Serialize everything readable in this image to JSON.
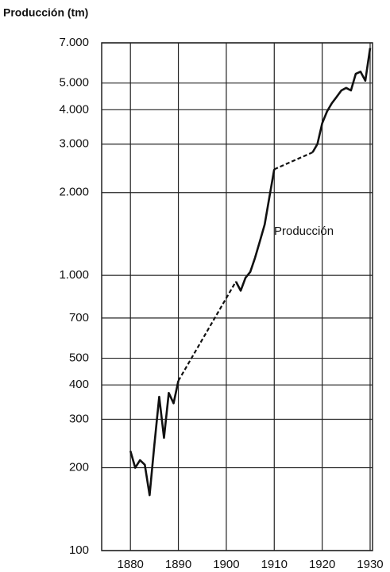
{
  "chart_data": {
    "type": "line",
    "y_label": "Producción (tm)",
    "annotation": "Producción",
    "x": [
      1880,
      1881,
      1882,
      1883,
      1884,
      1885,
      1886,
      1887,
      1888,
      1889,
      1890,
      1891,
      1892,
      1893,
      1894,
      1895,
      1896,
      1897,
      1898,
      1899,
      1900,
      1901,
      1902,
      1903,
      1904,
      1905,
      1906,
      1907,
      1908,
      1909,
      1910,
      1911,
      1912,
      1913,
      1914,
      1915,
      1916,
      1917,
      1918,
      1919,
      1920,
      1921,
      1922,
      1923,
      1924,
      1925,
      1926,
      1927,
      1928,
      1929,
      1930
    ],
    "series": [
      {
        "name": "Producción",
        "color": "#111111",
        "values": [
          230,
          200,
          213,
          205,
          159,
          243,
          362,
          257,
          374,
          343,
          414,
          null,
          null,
          null,
          null,
          null,
          null,
          null,
          null,
          null,
          null,
          null,
          950,
          880,
          980,
          1030,
          1160,
          1330,
          1530,
          1930,
          2430,
          null,
          null,
          null,
          null,
          null,
          null,
          null,
          2800,
          3000,
          3570,
          3940,
          4220,
          4450,
          4700,
          4800,
          4700,
          5400,
          5500,
          5100,
          6700
        ]
      }
    ],
    "xlim": [
      1874,
      1930.5
    ],
    "xticks": [
      1880,
      1890,
      1900,
      1910,
      1920,
      1930
    ],
    "ylim": [
      100,
      7000
    ],
    "log_y": true,
    "yticks": [
      {
        "value": 100,
        "label": "100"
      },
      {
        "value": 200,
        "label": "200"
      },
      {
        "value": 300,
        "label": "300"
      },
      {
        "value": 400,
        "label": "400"
      },
      {
        "value": 500,
        "label": "500"
      },
      {
        "value": 700,
        "label": "700"
      },
      {
        "value": 1000,
        "label": "1.000"
      },
      {
        "value": 2000,
        "label": "2.000"
      },
      {
        "value": 3000,
        "label": "3.000"
      },
      {
        "value": 4000,
        "label": "4.000"
      },
      {
        "value": 5000,
        "label": "5.000"
      },
      {
        "value": 7000,
        "label": "7.000"
      }
    ],
    "grid": true
  }
}
